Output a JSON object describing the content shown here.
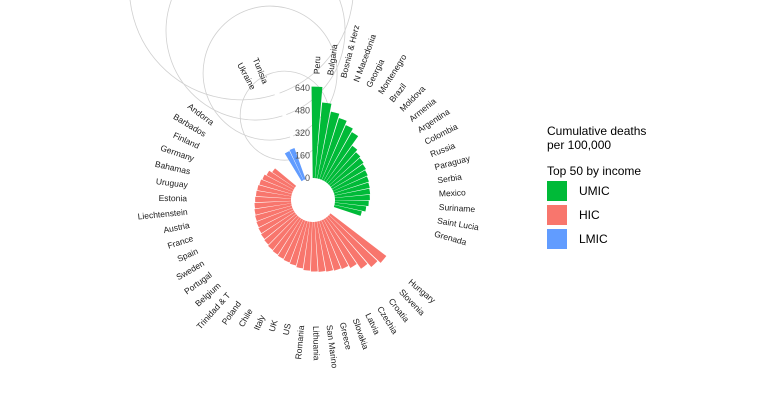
{
  "chart_data": {
    "type": "bar",
    "polar": true,
    "title": "",
    "ylabel": "",
    "ylim": [
      0,
      640
    ],
    "yticks": [
      "0",
      "160",
      "320",
      "480",
      "640"
    ],
    "grid": true,
    "legend_placement": "right",
    "legend_title": "Cumulative deaths per 100,000",
    "legend_subtitle": "Top 50 by income",
    "series": [
      {
        "name": "UMIC",
        "color": "#00BA38",
        "categories": [
          "Peru",
          "Bulgaria",
          "Bosnia & Herz",
          "N Macedonia",
          "Georgia",
          "Montenegro",
          "Brazil",
          "Moldova",
          "Armenia",
          "Argentina",
          "Colombia",
          "Russia",
          "Paraguay",
          "Serbia",
          "Mexico",
          "Suriname",
          "Saint Lucia",
          "Grenada"
        ],
        "values": [
          650,
          540,
          485,
          455,
          425,
          400,
          320,
          300,
          290,
          280,
          270,
          262,
          256,
          252,
          248,
          240,
          225,
          200
        ]
      },
      {
        "name": "HIC",
        "color": "#F8766D",
        "categories": [
          "Hungary",
          "Slovenia",
          "Croatia",
          "Czechia",
          "Latvia",
          "Slovakia",
          "Greece",
          "San Marino",
          "Lithuania",
          "Romania",
          "US",
          "UK",
          "Italy",
          "Chile",
          "Poland",
          "Trinidad & T",
          "Belgium",
          "Portugal",
          "Sweden",
          "Spain",
          "France",
          "Austria",
          "Liechtenstein",
          "Estonia",
          "Uruguay",
          "Bahamas",
          "Germany",
          "Finland",
          "Barbados",
          "Andorra"
        ],
        "values": [
          500,
          475,
          440,
          395,
          375,
          368,
          362,
          356,
          352,
          346,
          335,
          325,
          318,
          312,
          306,
          300,
          292,
          286,
          280,
          275,
          270,
          265,
          260,
          255,
          250,
          246,
          240,
          232,
          218,
          195
        ]
      },
      {
        "name": "LMIC",
        "color": "#619CFF",
        "categories": [
          "Ukraine",
          "Tunisia"
        ],
        "values": [
          230,
          236
        ]
      }
    ]
  }
}
